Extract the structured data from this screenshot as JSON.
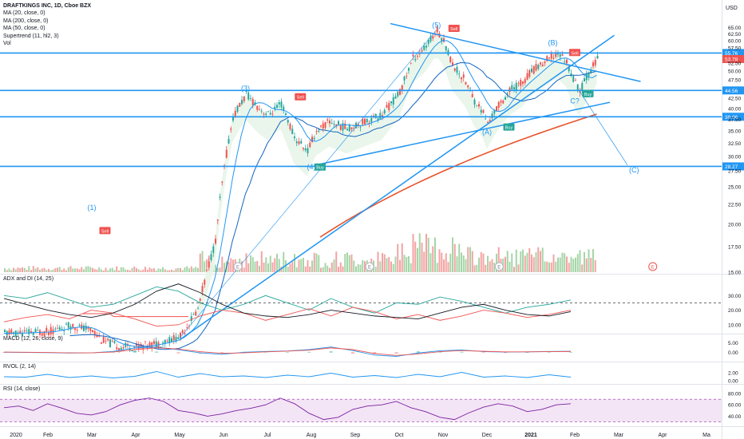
{
  "header": {
    "symbol": "DRAFTKINGS INC, 1D, Cboe BZX",
    "indicators": [
      "MA (20, close, 0)",
      "MA (200, close, 0)",
      "MA (50, close, 0)",
      "Supertrend (11, hl2, 3)",
      "Vol"
    ],
    "currency": "USD"
  },
  "colors": {
    "up": "#26a69a",
    "down": "#ef5350",
    "blue": "#2196f3",
    "ma200": "#e8532c",
    "vol_up": "#a5d6a7",
    "vol_down": "#f4a3a3",
    "rsi_band": "#f3e5f5"
  },
  "chart_data": [
    {
      "type": "line",
      "pane": "price",
      "x_ticks": [
        "2020",
        "Feb",
        "Mar",
        "Apr",
        "May",
        "Jun",
        "Jul",
        "Aug",
        "Sep",
        "Oct",
        "Nov",
        "Dec",
        "2021",
        "Feb",
        "Mar",
        "Apr",
        "Ma"
      ],
      "y_ticks": [
        15.0,
        17.5,
        20.0,
        22.5,
        25.0,
        27.5,
        30.0,
        32.5,
        35.0,
        37.5,
        40.0,
        42.5,
        47.5,
        50.0,
        52.5,
        57.5,
        60.0,
        62.5,
        65.0
      ],
      "ylim": [
        15,
        67
      ],
      "scale": "log",
      "price_series": [
        {
          "m": 0.0,
          "v": 10.4
        },
        {
          "m": 1.0,
          "v": 10.5
        },
        {
          "m": 1.5,
          "v": 10.9
        },
        {
          "m": 2.0,
          "v": 10.6
        },
        {
          "m": 2.2,
          "v": 10.0
        },
        {
          "m": 2.6,
          "v": 9.6
        },
        {
          "m": 3.0,
          "v": 9.6
        },
        {
          "m": 3.5,
          "v": 9.8
        },
        {
          "m": 4.0,
          "v": 10.2
        },
        {
          "m": 4.4,
          "v": 12.0
        },
        {
          "m": 4.8,
          "v": 18.0
        },
        {
          "m": 5.0,
          "v": 28.0
        },
        {
          "m": 5.2,
          "v": 38.0
        },
        {
          "m": 5.5,
          "v": 43.5
        },
        {
          "m": 5.8,
          "v": 40.0
        },
        {
          "m": 6.0,
          "v": 38.5
        },
        {
          "m": 6.3,
          "v": 41.0
        },
        {
          "m": 6.6,
          "v": 33.5
        },
        {
          "m": 6.9,
          "v": 31.0
        },
        {
          "m": 7.1,
          "v": 35.0
        },
        {
          "m": 7.4,
          "v": 37.0
        },
        {
          "m": 7.8,
          "v": 35.5
        },
        {
          "m": 8.2,
          "v": 37.0
        },
        {
          "m": 8.6,
          "v": 38.5
        },
        {
          "m": 9.0,
          "v": 44.0
        },
        {
          "m": 9.3,
          "v": 54.0
        },
        {
          "m": 9.6,
          "v": 58.0
        },
        {
          "m": 9.85,
          "v": 64.0
        },
        {
          "m": 10.0,
          "v": 60.0
        },
        {
          "m": 10.2,
          "v": 52.0
        },
        {
          "m": 10.5,
          "v": 47.0
        },
        {
          "m": 10.7,
          "v": 42.0
        },
        {
          "m": 10.9,
          "v": 39.0
        },
        {
          "m": 11.0,
          "v": 36.5
        },
        {
          "m": 11.2,
          "v": 40.0
        },
        {
          "m": 11.5,
          "v": 44.5
        },
        {
          "m": 11.8,
          "v": 47.0
        },
        {
          "m": 12.0,
          "v": 50.0
        },
        {
          "m": 12.3,
          "v": 53.0
        },
        {
          "m": 12.6,
          "v": 55.8
        },
        {
          "m": 12.8,
          "v": 53.0
        },
        {
          "m": 12.95,
          "v": 47.5
        },
        {
          "m": 13.1,
          "v": 44.5
        },
        {
          "m": 13.3,
          "v": 49.5
        },
        {
          "m": 13.5,
          "v": 53.8
        }
      ],
      "horizontal_levels": [
        55.76,
        44.56,
        38.06,
        28.27
      ],
      "last_price": 53.78,
      "price_labels": [
        "55.76",
        "53.78",
        "44.56",
        "38.06",
        "28.27"
      ],
      "wave_labels": [
        {
          "text": "(1)",
          "m": 2.0,
          "v": 21.8
        },
        {
          "text": "(3)",
          "m": 5.5,
          "v": 44.5
        },
        {
          "text": "(4)",
          "m": 7.0,
          "v": 27.8
        },
        {
          "text": "(5)",
          "m": 9.85,
          "v": 65.0
        },
        {
          "text": "(A)",
          "m": 11.0,
          "v": 34.2
        },
        {
          "text": "(B)",
          "m": 12.5,
          "v": 58.5
        },
        {
          "text": "C?",
          "m": 13.0,
          "v": 41.2
        },
        {
          "text": "(C)",
          "m": 14.35,
          "v": 27.3
        }
      ],
      "signals": [
        {
          "text": "Sell",
          "m": 2.3,
          "v": 19.2,
          "kind": "sell"
        },
        {
          "text": "Sell",
          "m": 6.75,
          "v": 42.8,
          "kind": "sell"
        },
        {
          "text": "Buy",
          "m": 7.2,
          "v": 28.1,
          "kind": "buy"
        },
        {
          "text": "Sell",
          "m": 10.25,
          "v": 64.5,
          "kind": "sell"
        },
        {
          "text": "Buy",
          "m": 11.5,
          "v": 35.7,
          "kind": "buy"
        },
        {
          "text": "Sell",
          "m": 13.0,
          "v": 55.8,
          "kind": "sell"
        },
        {
          "text": "Buy",
          "m": 13.3,
          "v": 43.6,
          "kind": "buy"
        }
      ],
      "event_markers": [
        "E",
        "E",
        "E",
        "E"
      ]
    },
    {
      "type": "line",
      "pane": "adx",
      "title": "ADX and DI (14, 25)",
      "y_ticks": [
        10.0,
        20.0,
        30.0
      ],
      "ylim": [
        5,
        40
      ],
      "threshold": 25,
      "series": [
        {
          "color": "#26a69a",
          "values": [
            30,
            28,
            32,
            27,
            22,
            24,
            30,
            36,
            33,
            25,
            20,
            24,
            30,
            25,
            20,
            28,
            22,
            18,
            25,
            24,
            29,
            26,
            22,
            18,
            22,
            24,
            27
          ]
        },
        {
          "color": "#ef5350",
          "values": [
            12,
            15,
            17,
            14,
            20,
            18,
            14,
            9,
            10,
            16,
            20,
            18,
            13,
            17,
            21,
            16,
            22,
            19,
            14,
            17,
            13,
            16,
            20,
            18,
            15,
            17,
            20
          ]
        },
        {
          "color": "#131722",
          "values": [
            28,
            24,
            20,
            17,
            15,
            18,
            24,
            33,
            38,
            32,
            24,
            18,
            16,
            15,
            17,
            20,
            18,
            16,
            15,
            14,
            18,
            22,
            24,
            20,
            17,
            16,
            19
          ]
        }
      ]
    },
    {
      "type": "bar",
      "pane": "macd",
      "title": "MACD (12, 26, close, 9)",
      "y_ticks": [
        0.0,
        5.0
      ],
      "ylim": [
        -4,
        7
      ],
      "series": [
        {
          "color": "#2196f3",
          "values": [
            0.1,
            0.0,
            -0.1,
            -0.3,
            -0.2,
            0.5,
            2.4,
            2.9,
            1.4,
            -0.2,
            -1.0,
            0.1,
            0.5,
            0.8,
            1.5,
            2.9,
            1.0,
            -1.4,
            -2.1,
            -0.3,
            0.9,
            1.3,
            0.4,
            0.2,
            0.3,
            0.5,
            0.6
          ]
        },
        {
          "color": "#ef5350",
          "values": [
            0.2,
            0.1,
            0.0,
            -0.2,
            -0.2,
            0.2,
            1.5,
            2.5,
            1.8,
            0.4,
            -0.5,
            -0.2,
            0.3,
            0.7,
            1.2,
            2.4,
            1.5,
            -0.6,
            -1.6,
            -0.8,
            0.4,
            1.0,
            0.6,
            0.3,
            0.3,
            0.4,
            0.5
          ]
        }
      ]
    },
    {
      "type": "line",
      "pane": "rvol",
      "title": "RVOL (2, 14)",
      "y_ticks": [
        2.0,
        0.0
      ],
      "ylim": [
        -0.4,
        3.4
      ],
      "series": [
        {
          "color": "#2196f3",
          "values": [
            1.0,
            0.9,
            1.6,
            0.8,
            1.2,
            0.7,
            1.1,
            2.3,
            0.9,
            1.8,
            1.0,
            1.2,
            0.8,
            1.4,
            1.0,
            1.9,
            0.9,
            1.3,
            0.8,
            1.6,
            1.0,
            2.1,
            0.9,
            1.2,
            0.8,
            1.5,
            0.9
          ]
        }
      ]
    },
    {
      "type": "area",
      "pane": "rsi",
      "title": "RSI (14, close)",
      "y_ticks": [
        80.0,
        60.0,
        40.0
      ],
      "ylim": [
        25,
        90
      ],
      "band": [
        30,
        70
      ],
      "series": [
        {
          "color": "#7b1fa2",
          "values": [
            55,
            58,
            50,
            62,
            54,
            45,
            42,
            48,
            60,
            68,
            72,
            66,
            50,
            46,
            40,
            44,
            50,
            54,
            60,
            72,
            62,
            45,
            34,
            38,
            52,
            58,
            60,
            66,
            55,
            48,
            38,
            34,
            46,
            56,
            62,
            58,
            48,
            52,
            60,
            62
          ]
        }
      ]
    }
  ]
}
